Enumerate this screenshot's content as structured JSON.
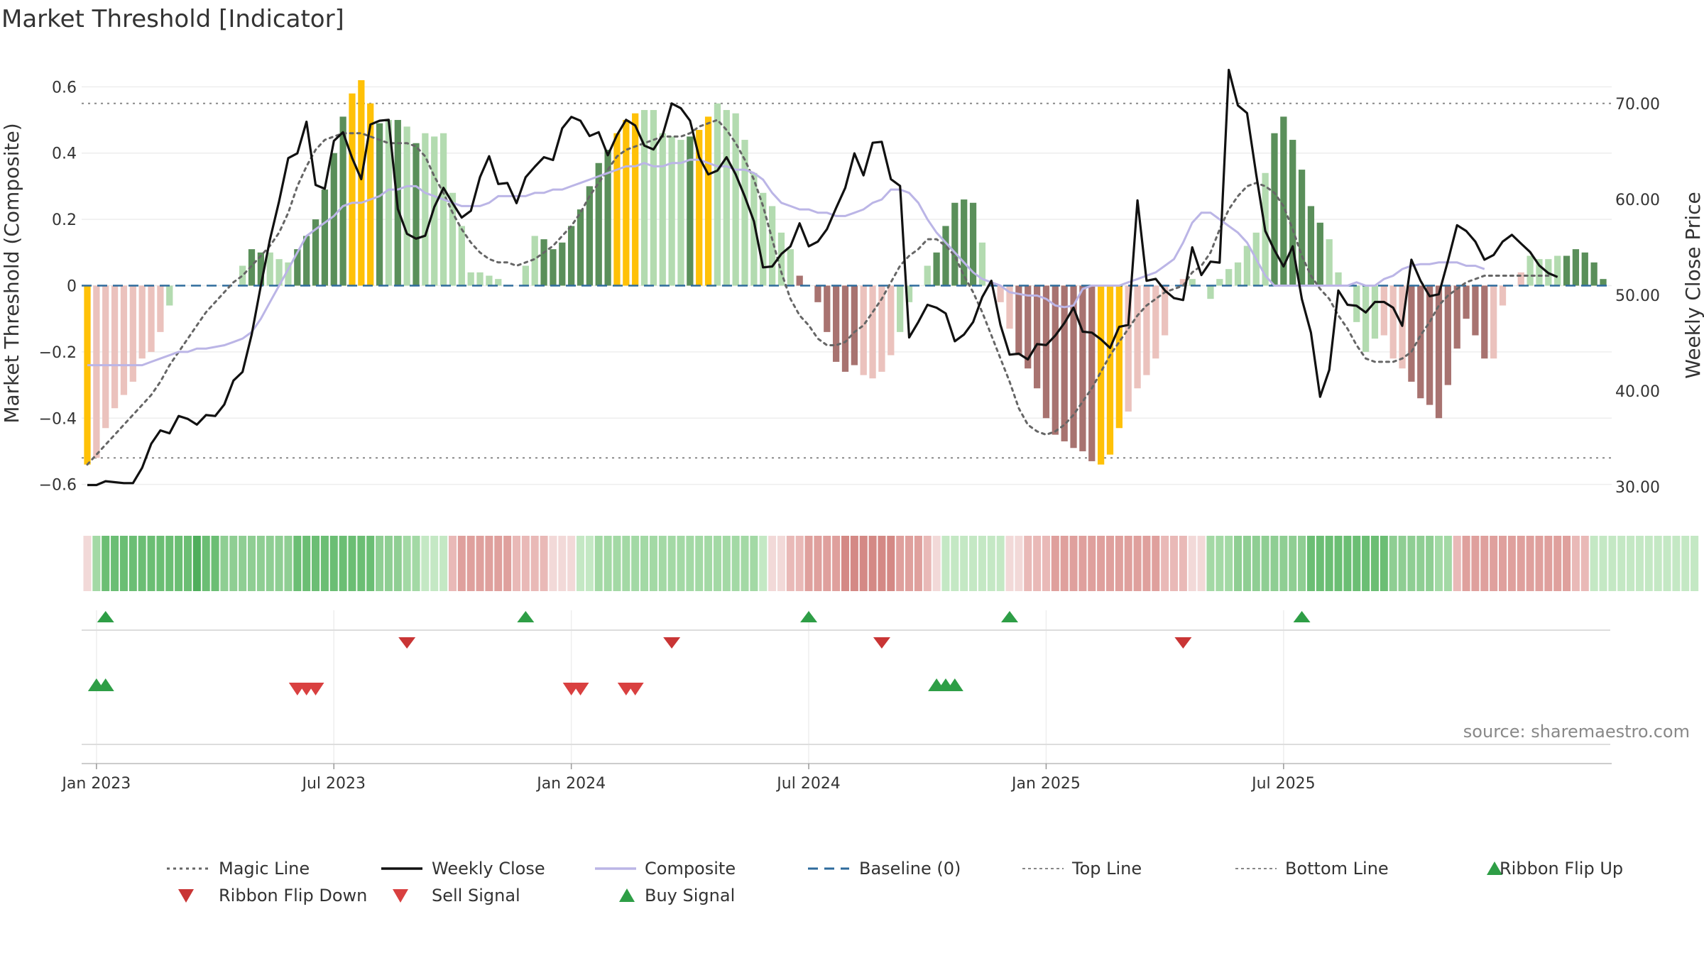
{
  "chart_data": {
    "type": "bar",
    "title": "Market Threshold [Indicator]",
    "ylabel": "Market Threshold (Composite)",
    "ylabel_right": "Weekly Close Price",
    "source": "source: sharemaestro.com",
    "ylim": [
      -0.68,
      0.68
    ],
    "ylim_right": [
      27.5,
      74.5
    ],
    "yticks": [
      {
        "value": 0.6,
        "label": "0.6"
      },
      {
        "value": 0.4,
        "label": "0.4"
      },
      {
        "value": 0.2,
        "label": "0.2"
      },
      {
        "value": 0,
        "label": "0"
      },
      {
        "value": -0.2,
        "label": "−0.2"
      },
      {
        "value": -0.4,
        "label": "−0.4"
      },
      {
        "value": -0.6,
        "label": "−0.6"
      }
    ],
    "yticks_right": [
      {
        "value": 70,
        "label": "70.00"
      },
      {
        "value": 60,
        "label": "60.00"
      },
      {
        "value": 50,
        "label": "50.00"
      },
      {
        "value": 40,
        "label": "40.00"
      },
      {
        "value": 30,
        "label": "30.00"
      }
    ],
    "xticks": [
      {
        "week": 1,
        "label": "Jan 2023"
      },
      {
        "week": 27,
        "label": "Jul 2023"
      },
      {
        "week": 53,
        "label": "Jan 2024"
      },
      {
        "week": 79,
        "label": "Jul 2024"
      },
      {
        "week": 105,
        "label": "Jan 2025"
      },
      {
        "week": 131,
        "label": "Jul 2025"
      }
    ],
    "colors": {
      "up_dark": "#5a8f5a",
      "up_light": "#b3dbb0",
      "down_dark": "#a87370",
      "down_light": "#ebc2bd",
      "highlight": "#ffc107",
      "weekly_close": "#111111",
      "composite": "#bbb5e6",
      "magic_line": "#666666",
      "baseline": "#2e6b9c",
      "threshold_lines": "#888888",
      "buy": "#2e9e46",
      "sell": "#d94040",
      "flip_up": "#2e9e46",
      "flip_down": "#c93535"
    },
    "top_line": 0.55,
    "bottom_line": -0.52,
    "histogram": [
      -0.54,
      -0.52,
      -0.43,
      -0.37,
      -0.33,
      -0.29,
      -0.22,
      -0.2,
      -0.14,
      -0.06,
      0,
      0,
      0,
      0,
      0,
      0,
      0,
      0.06,
      0.11,
      0.1,
      0.1,
      0.08,
      0.07,
      0.11,
      0.15,
      0.2,
      0.29,
      0.4,
      0.51,
      0.58,
      0.62,
      0.55,
      0.49,
      0.5,
      0.5,
      0.48,
      0.43,
      0.46,
      0.45,
      0.46,
      0.28,
      0.18,
      0.04,
      0.04,
      0.03,
      0.02,
      0,
      0,
      0.06,
      0.15,
      0.14,
      0.11,
      0.13,
      0.18,
      0.23,
      0.3,
      0.37,
      0.41,
      0.46,
      0.5,
      0.52,
      0.53,
      0.53,
      0.46,
      0.45,
      0.44,
      0.45,
      0.47,
      0.51,
      0.55,
      0.53,
      0.52,
      0.44,
      0.34,
      0.28,
      0.24,
      0.16,
      0.11,
      0.03,
      0,
      -0.05,
      -0.14,
      -0.23,
      -0.26,
      -0.24,
      -0.27,
      -0.28,
      -0.26,
      -0.21,
      -0.14,
      -0.05,
      0,
      0.06,
      0.1,
      0.18,
      0.25,
      0.26,
      0.25,
      0.13,
      0,
      -0.05,
      -0.13,
      -0.21,
      -0.25,
      -0.31,
      -0.4,
      -0.45,
      -0.47,
      -0.49,
      -0.5,
      -0.53,
      -0.54,
      -0.51,
      -0.43,
      -0.38,
      -0.31,
      -0.27,
      -0.22,
      -0.15,
      0,
      0.02,
      0.02,
      0,
      -0.04,
      0.02,
      0.05,
      0.07,
      0.12,
      0.16,
      0.34,
      0.46,
      0.51,
      0.44,
      0.35,
      0.24,
      0.19,
      0.14,
      0.04,
      0,
      -0.11,
      -0.2,
      -0.16,
      -0.15,
      -0.22,
      -0.25,
      -0.29,
      -0.34,
      -0.36,
      -0.4,
      -0.3,
      -0.19,
      -0.1,
      -0.15,
      -0.22,
      -0.22,
      -0.06,
      0,
      0.04,
      0.09,
      0.08,
      0.08,
      0.09,
      0.09,
      0.11,
      0.1,
      0.07,
      0.02
    ],
    "histogram_shades": "HddddddddeeeeeeeuuUUuuuUUUUUUHHHUuUuUuuuuuuueeuUuuUUUUUUUUHHHuuuuuUHHuuuuuuueeDDDDDDDddddeeuuUUUUUuuddDDDDDDDDDHHHddddddduuuueuuuuUUUUUUuuuuuedddDDDDDDDDDddddeeuuUUUUUUUUUU",
    "weekly_close": [
      30.2,
      30.2,
      30.6,
      30.5,
      30.4,
      30.4,
      32,
      34.5,
      35.9,
      35.6,
      37.4,
      37.1,
      36.5,
      37.5,
      37.4,
      38.6,
      41.1,
      42,
      45.9,
      51,
      55.8,
      59.8,
      64.3,
      64.8,
      68.1,
      61.5,
      61.1,
      66.1,
      67,
      64.3,
      62.1,
      67.8,
      68.2,
      68.3,
      59,
      56.4,
      55.9,
      56.2,
      59.2,
      61.2,
      59.6,
      58.1,
      58.8,
      62.3,
      64.5,
      61.6,
      61.7,
      59.6,
      62.3,
      63.4,
      64.4,
      64.1,
      67.4,
      68.6,
      68.2,
      66.6,
      67,
      64.6,
      66.7,
      68.3,
      67.7,
      65.6,
      65.2,
      66.7,
      70,
      69.5,
      68.2,
      64.4,
      62.6,
      63,
      64.4,
      62.6,
      60.3,
      57.7,
      52.9,
      53,
      54.3,
      55.1,
      57.5,
      55.1,
      55.6,
      56.9,
      59.1,
      61.2,
      64.8,
      62.5,
      65.9,
      66,
      62.1,
      61.4,
      45.6,
      47.2,
      49,
      48.7,
      48.1,
      45.2,
      45.9,
      47.2,
      49.8,
      51.5,
      46.9,
      43.8,
      43.9,
      43.3,
      44.9,
      44.8,
      45.8,
      47.1,
      48.7,
      46.2,
      46.1,
      45.4,
      44.5,
      46.7,
      46.9,
      59.9,
      51.5,
      51.7,
      50.5,
      49.7,
      49.5,
      55,
      52.1,
      53.5,
      53.4,
      73.5,
      69.8,
      69,
      62.6,
      56.7,
      54.7,
      53,
      55.1,
      49.6,
      46.1,
      39.4,
      42.2,
      50.5,
      49,
      48.9,
      48.2,
      49.3,
      49.3,
      48.7,
      46.8,
      53.7,
      51.5,
      49.9,
      50.1,
      53.6,
      57.3,
      56.7,
      55.6,
      53.7,
      54.2,
      55.6,
      56.3,
      55.4,
      54.5,
      53.1,
      52.3,
      51.9
    ],
    "composite": [
      -0.24,
      -0.24,
      -0.24,
      -0.24,
      -0.24,
      -0.24,
      -0.24,
      -0.23,
      -0.22,
      -0.21,
      -0.2,
      -0.2,
      -0.19,
      -0.19,
      -0.185,
      -0.18,
      -0.17,
      -0.16,
      -0.14,
      -0.1,
      -0.05,
      0,
      0.05,
      0.1,
      0.15,
      0.17,
      0.19,
      0.21,
      0.24,
      0.25,
      0.25,
      0.26,
      0.27,
      0.29,
      0.29,
      0.3,
      0.3,
      0.28,
      0.27,
      0.26,
      0.25,
      0.24,
      0.24,
      0.24,
      0.25,
      0.27,
      0.27,
      0.27,
      0.27,
      0.28,
      0.28,
      0.29,
      0.29,
      0.3,
      0.31,
      0.32,
      0.33,
      0.34,
      0.35,
      0.36,
      0.36,
      0.37,
      0.36,
      0.36,
      0.37,
      0.37,
      0.38,
      0.38,
      0.37,
      0.36,
      0.36,
      0.35,
      0.35,
      0.34,
      0.32,
      0.28,
      0.25,
      0.24,
      0.23,
      0.23,
      0.22,
      0.22,
      0.21,
      0.21,
      0.22,
      0.23,
      0.25,
      0.26,
      0.29,
      0.29,
      0.28,
      0.25,
      0.2,
      0.16,
      0.13,
      0.1,
      0.07,
      0.04,
      0.02,
      0.01,
      0,
      -0.02,
      -0.025,
      -0.03,
      -0.03,
      -0.04,
      -0.06,
      -0.065,
      -0.06,
      -0.01,
      0,
      0,
      0,
      0,
      0.01,
      0.02,
      0.03,
      0.04,
      0.06,
      0.08,
      0.13,
      0.19,
      0.22,
      0.22,
      0.2,
      0.18,
      0.16,
      0.13,
      0.08,
      0.03,
      0,
      0,
      0,
      0,
      0,
      0,
      0,
      0,
      0,
      0.01,
      0,
      0,
      0.02,
      0.03,
      0.05,
      0.06,
      0.065,
      0.065,
      0.07,
      0.07,
      0.07,
      0.06,
      0.06,
      0.05
    ],
    "magic_line": [
      -0.54,
      -0.51,
      -0.48,
      -0.45,
      -0.42,
      -0.39,
      -0.36,
      -0.33,
      -0.29,
      -0.24,
      -0.2,
      -0.16,
      -0.12,
      -0.08,
      -0.05,
      -0.02,
      0.01,
      0.03,
      0.06,
      0.09,
      0.12,
      0.16,
      0.22,
      0.3,
      0.36,
      0.41,
      0.44,
      0.45,
      0.46,
      0.46,
      0.46,
      0.45,
      0.44,
      0.43,
      0.43,
      0.43,
      0.42,
      0.39,
      0.33,
      0.28,
      0.22,
      0.17,
      0.13,
      0.1,
      0.08,
      0.07,
      0.07,
      0.06,
      0.07,
      0.08,
      0.1,
      0.12,
      0.15,
      0.18,
      0.22,
      0.27,
      0.31,
      0.35,
      0.39,
      0.41,
      0.42,
      0.43,
      0.44,
      0.45,
      0.45,
      0.45,
      0.46,
      0.48,
      0.49,
      0.5,
      0.47,
      0.43,
      0.38,
      0.32,
      0.24,
      0.14,
      0.04,
      -0.04,
      -0.09,
      -0.12,
      -0.16,
      -0.18,
      -0.18,
      -0.17,
      -0.14,
      -0.12,
      -0.08,
      -0.04,
      0.01,
      0.06,
      0.09,
      0.11,
      0.14,
      0.14,
      0.12,
      0.09,
      0.03,
      -0.02,
      -0.08,
      -0.15,
      -0.22,
      -0.29,
      -0.37,
      -0.42,
      -0.44,
      -0.45,
      -0.44,
      -0.42,
      -0.39,
      -0.35,
      -0.31,
      -0.26,
      -0.21,
      -0.17,
      -0.13,
      -0.09,
      -0.06,
      -0.04,
      -0.02,
      -0.01,
      0,
      0.04,
      0.06,
      0.1,
      0.17,
      0.23,
      0.27,
      0.3,
      0.31,
      0.3,
      0.28,
      0.24,
      0.17,
      0.09,
      0.03,
      -0.01,
      -0.04,
      -0.09,
      -0.13,
      -0.18,
      -0.22,
      -0.23,
      -0.23,
      -0.23,
      -0.22,
      -0.2,
      -0.15,
      -0.11,
      -0.06,
      -0.03,
      -0.01,
      0.01,
      0.02,
      0.03,
      0.03,
      0.03,
      0.03,
      0.03,
      0.03,
      0.03,
      0.03
    ],
    "ribbon_shades": [
      -1,
      2,
      4,
      4,
      4,
      4,
      4,
      4,
      4,
      4,
      4,
      4,
      5,
      4,
      4,
      3,
      3,
      3,
      3,
      3,
      3,
      3,
      3,
      4,
      4,
      4,
      4,
      4,
      4,
      4,
      4,
      4,
      3,
      3,
      3,
      2,
      2,
      1,
      1,
      1,
      -2,
      -3,
      -3,
      -3,
      -3,
      -3,
      -3,
      -2,
      -2,
      -2,
      -2,
      -1,
      -1,
      -1,
      1,
      1,
      2,
      2,
      2,
      2,
      2,
      2,
      2,
      2,
      2,
      2,
      2,
      2,
      2,
      2,
      2,
      2,
      2,
      2,
      1,
      -1,
      -1,
      -2,
      -2,
      -3,
      -3,
      -3,
      -3,
      -4,
      -4,
      -4,
      -4,
      -4,
      -4,
      -3,
      -3,
      -3,
      -2,
      -1,
      1,
      1,
      1,
      1,
      1,
      1,
      1,
      -1,
      -1,
      -2,
      -2,
      -2,
      -3,
      -3,
      -3,
      -3,
      -3,
      -3,
      -3,
      -3,
      -3,
      -3,
      -3,
      -3,
      -2,
      -2,
      -2,
      -1,
      -1,
      2,
      2,
      2,
      3,
      3,
      3,
      3,
      3,
      3,
      3,
      3,
      4,
      4,
      4,
      4,
      4,
      4,
      4,
      4,
      4,
      3,
      3,
      3,
      3,
      3,
      2,
      2,
      -2,
      -3,
      -3,
      -3,
      -3,
      -3,
      -3,
      -3,
      -3,
      -3,
      -3,
      -3,
      -3,
      -2,
      -2,
      1,
      1,
      1,
      1,
      1,
      1,
      1,
      1,
      1,
      1,
      1,
      1
    ],
    "flip_up_weeks": [
      2,
      48,
      79,
      101,
      133
    ],
    "flip_down_weeks": [
      35,
      64,
      87,
      120
    ],
    "buy_signal_weeks": [
      1,
      2,
      93,
      94,
      95
    ],
    "sell_signal_weeks": [
      23,
      24,
      25,
      53,
      54,
      59,
      60
    ],
    "legend": [
      {
        "label": "Magic Line",
        "kind": "dotted",
        "color": "#666666"
      },
      {
        "label": "Weekly Close",
        "kind": "solid",
        "color": "#111111"
      },
      {
        "label": "Composite",
        "kind": "solid-light",
        "color": "#bbb5e6"
      },
      {
        "label": "Baseline (0)",
        "kind": "dashed",
        "color": "#2e6b9c"
      },
      {
        "label": "Top Line",
        "kind": "dotted-thin",
        "color": "#888888"
      },
      {
        "label": "Bottom Line",
        "kind": "dotted-thin",
        "color": "#888888"
      },
      {
        "label": "Ribbon Flip Up",
        "kind": "tri-up",
        "color": "#2e9e46"
      },
      {
        "label": "Ribbon Flip Down",
        "kind": "tri-down",
        "color": "#c93535"
      },
      {
        "label": "Sell Signal",
        "kind": "tri-down",
        "color": "#d94040"
      },
      {
        "label": "Buy Signal",
        "kind": "tri-up",
        "color": "#2e9e46"
      }
    ]
  }
}
